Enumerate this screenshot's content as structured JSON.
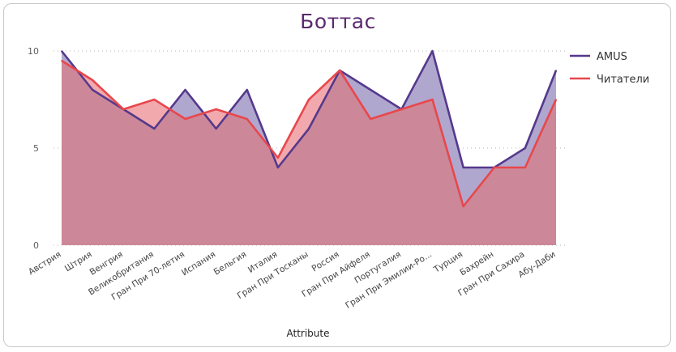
{
  "chart_data": {
    "type": "area",
    "title": "Боттас",
    "xlabel": "Attribute",
    "ylabel": "",
    "ylim": [
      0,
      10
    ],
    "yticks": [
      "0",
      "5",
      "10"
    ],
    "grid": true,
    "legend_position": "right",
    "categories": [
      "Австрия",
      "Штрия",
      "Венгрия",
      "Великобритания",
      "Гран При 70-летия",
      "Испания",
      "Бельгия",
      "Италия",
      "Гран При Тосканы",
      "Россия",
      "Гран При Айфеля",
      "Португалия",
      "Гран При Эмилии-Ро...",
      "Турция",
      "Бахрейн",
      "Гран При Сахира",
      "Абу-Даби"
    ],
    "series": [
      {
        "name": "AMUS",
        "color": "#55398c",
        "fill": "#b0a7cf",
        "values": [
          10,
          8,
          7,
          6,
          8,
          6,
          8,
          4,
          6,
          9,
          8,
          7,
          10,
          4,
          4,
          5,
          9
        ]
      },
      {
        "name": "Читатели",
        "color": "#e8474c",
        "fill": "#f2a9ad",
        "values": [
          9.5,
          8.5,
          7,
          7.5,
          6.5,
          7,
          6.5,
          4.5,
          7.5,
          9,
          6.5,
          7,
          7.5,
          2,
          4,
          4,
          7.5
        ]
      }
    ],
    "overlap_fill": "#cc8898"
  }
}
